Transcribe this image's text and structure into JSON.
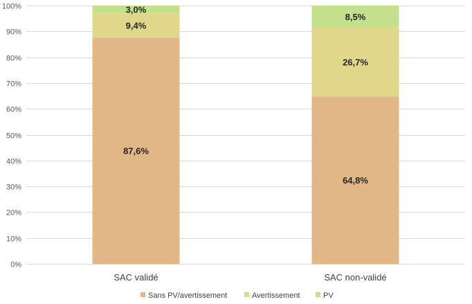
{
  "chart_data": {
    "type": "bar",
    "stacked": "percent",
    "categories": [
      "SAC validé",
      "SAC non-validé"
    ],
    "series": [
      {
        "name": "Sans PV/avertissement",
        "color": "#e2b787",
        "values": [
          87.6,
          64.8
        ],
        "labels": [
          "87,6%",
          "64,8%"
        ]
      },
      {
        "name": "Avertissement",
        "color": "#e1d78b",
        "values": [
          9.4,
          26.7
        ],
        "labels": [
          "9,4%",
          "26,7%"
        ]
      },
      {
        "name": "PV",
        "color": "#c5e08c",
        "values": [
          3.0,
          8.5
        ],
        "labels": [
          "3,0%",
          "8,5%"
        ]
      }
    ],
    "ylim": [
      0,
      100
    ],
    "yticks": [
      "0%",
      "10%",
      "20%",
      "30%",
      "40%",
      "50%",
      "60%",
      "70%",
      "80%",
      "90%",
      "100%"
    ],
    "grid": true,
    "legend": "bottom"
  }
}
